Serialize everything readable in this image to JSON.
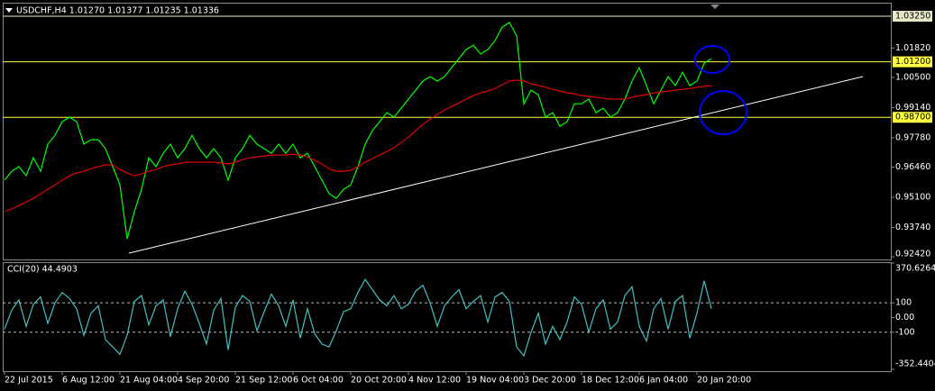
{
  "chart_data": [
    {
      "type": "line",
      "title": "USDCHF,H4  1.01270 1.01377 1.01235 1.01336",
      "categories": [
        "22 Jul 2015",
        null,
        null,
        null,
        null,
        null,
        null,
        null,
        "6 Aug 12:00",
        null,
        null,
        null,
        null,
        null,
        null,
        null,
        "21 Aug 04:00",
        null,
        null,
        null,
        null,
        null,
        null,
        null,
        "4 Sep 20:00",
        null,
        null,
        null,
        null,
        null,
        null,
        null,
        "21 Sep 12:00",
        null,
        null,
        null,
        null,
        null,
        null,
        null,
        "6 Oct 04:00",
        null,
        null,
        null,
        null,
        null,
        null,
        null,
        "20 Oct 20:00",
        null,
        null,
        null,
        null,
        null,
        null,
        null,
        "4 Nov 12:00",
        null,
        null,
        null,
        null,
        null,
        null,
        null,
        "19 Nov 04:00",
        null,
        null,
        null,
        null,
        null,
        null,
        null,
        "3 Dec 20:00",
        null,
        null,
        null,
        null,
        null,
        null,
        null,
        "18 Dec 12:00",
        null,
        null,
        null,
        null,
        null,
        null,
        null,
        "6 Jan 04:00",
        null,
        null,
        null,
        null,
        null,
        null,
        null,
        "20 Jan 20:00",
        null,
        null
      ],
      "series": [
        {
          "color": "#00ff00",
          "values": [
            0.9587,
            0.9627,
            0.9648,
            0.9607,
            0.9688,
            0.9627,
            0.9749,
            0.9789,
            0.985,
            0.9871,
            0.985,
            0.9749,
            0.9769,
            0.9769,
            0.9729,
            0.9648,
            0.9566,
            0.9323,
            0.9445,
            0.9546,
            0.9688,
            0.9648,
            0.9708,
            0.9749,
            0.9688,
            0.9729,
            0.9789,
            0.9729,
            0.9688,
            0.9729,
            0.9688,
            0.9587,
            0.9688,
            0.9729,
            0.9789,
            0.9749,
            0.9729,
            0.9708,
            0.9749,
            0.9708,
            0.9749,
            0.9688,
            0.9708,
            0.9648,
            0.9587,
            0.9526,
            0.9505,
            0.9546,
            0.9566,
            0.9648,
            0.9749,
            0.981,
            0.985,
            0.9891,
            0.9871,
            0.9911,
            0.9952,
            0.9992,
            1.0033,
            1.0053,
            1.0033,
            1.0053,
            1.0094,
            1.0134,
            1.0175,
            1.0195,
            1.0155,
            1.0175,
            1.0215,
            1.0276,
            1.0297,
            1.0236,
            0.9931,
            0.9992,
            0.9972,
            0.9871,
            0.9891,
            0.983,
            0.985,
            0.9931,
            0.9931,
            0.9952,
            0.9891,
            0.9911,
            0.9871,
            0.9891,
            0.9952,
            1.0033,
            1.0094,
            1.0013,
            0.9931,
            0.9992,
            1.0053,
            1.0013,
            1.0073,
            1.0013,
            1.0033,
            1.0114,
            1.0134
          ]
        },
        {
          "color": "#e00000",
          "values": [
            0.9445,
            0.9457,
            0.9473,
            0.9489,
            0.9505,
            0.9526,
            0.9546,
            0.9566,
            0.9587,
            0.9607,
            0.9619,
            0.9627,
            0.9639,
            0.9648,
            0.9656,
            0.9656,
            0.9635,
            0.9619,
            0.9607,
            0.9615,
            0.9627,
            0.9635,
            0.9648,
            0.9656,
            0.966,
            0.9668,
            0.9668,
            0.9668,
            0.9668,
            0.9668,
            0.9664,
            0.966,
            0.9668,
            0.968,
            0.9688,
            0.9692,
            0.9696,
            0.97,
            0.97,
            0.97,
            0.9704,
            0.97,
            0.9692,
            0.9676,
            0.966,
            0.9639,
            0.9627,
            0.9627,
            0.9631,
            0.9648,
            0.9668,
            0.9684,
            0.97,
            0.9716,
            0.9733,
            0.9757,
            0.9781,
            0.981,
            0.9838,
            0.9862,
            0.9883,
            0.9903,
            0.9919,
            0.9935,
            0.9952,
            0.9968,
            0.998,
            0.9988,
            1.0,
            1.0017,
            1.0033,
            1.0037,
            1.0033,
            1.0021,
            1.0013,
            1.0005,
            0.9996,
            0.9988,
            0.998,
            0.9976,
            0.9968,
            0.9964,
            0.996,
            0.9956,
            0.9952,
            0.9952,
            0.9952,
            0.996,
            0.9968,
            0.9972,
            0.998,
            0.9984,
            0.9988,
            0.9992,
            0.9996,
            1.0,
            1.0005,
            1.0009,
            1.0013
          ]
        }
      ],
      "ylim": [
        0.923,
        1.0386
      ],
      "yticks": [
        {
          "value": 1.0182,
          "label": "1.01820"
        },
        {
          "value": 1.005,
          "label": "1.00500"
        },
        {
          "value": 0.9914,
          "label": "0.99140"
        },
        {
          "value": 0.9778,
          "label": "0.97780"
        },
        {
          "value": 0.9646,
          "label": "0.96460"
        },
        {
          "value": 0.951,
          "label": "0.95100"
        },
        {
          "value": 0.9374,
          "label": "0.93740"
        },
        {
          "value": 0.9242,
          "label": "0.92420"
        }
      ],
      "levels": [
        {
          "value": 1.0325,
          "label": "1.03250",
          "color": "#e8e8c8"
        },
        {
          "value": 1.012,
          "label": "1.01200",
          "color": "#ffff40"
        },
        {
          "value": 0.987,
          "label": "0.98700",
          "color": "#ffff40"
        }
      ]
    },
    {
      "type": "line",
      "title": "CCI(20) 44.4903",
      "series": [
        {
          "color": "#40c0c0",
          "values": [
            -80,
            50,
            120,
            -60,
            90,
            140,
            -40,
            100,
            170,
            130,
            60,
            -120,
            30,
            80,
            -150,
            -200,
            -250,
            -120,
            110,
            150,
            -50,
            80,
            120,
            -130,
            60,
            180,
            90,
            -40,
            -180,
            50,
            130,
            -220,
            70,
            150,
            110,
            -90,
            40,
            160,
            80,
            -60,
            120,
            -140,
            60,
            -110,
            -180,
            -200,
            -90,
            40,
            60,
            170,
            260,
            190,
            120,
            80,
            150,
            60,
            90,
            180,
            220,
            100,
            -60,
            80,
            140,
            190,
            60,
            110,
            150,
            -30,
            140,
            170,
            110,
            -200,
            -260,
            -100,
            30,
            -180,
            -60,
            -150,
            -30,
            140,
            90,
            -100,
            60,
            120,
            -80,
            -30,
            150,
            210,
            -60,
            -160,
            60,
            130,
            -80,
            110,
            150,
            -140,
            30,
            250,
            60
          ]
        }
      ],
      "ylim": [
        -352.4404,
        370.6264
      ],
      "yticks": [
        370.6264,
        100,
        {
          "value": 0,
          "label": "0.00"
        },
        -100,
        -352.4404
      ],
      "levels": [
        100,
        -100
      ]
    }
  ]
}
